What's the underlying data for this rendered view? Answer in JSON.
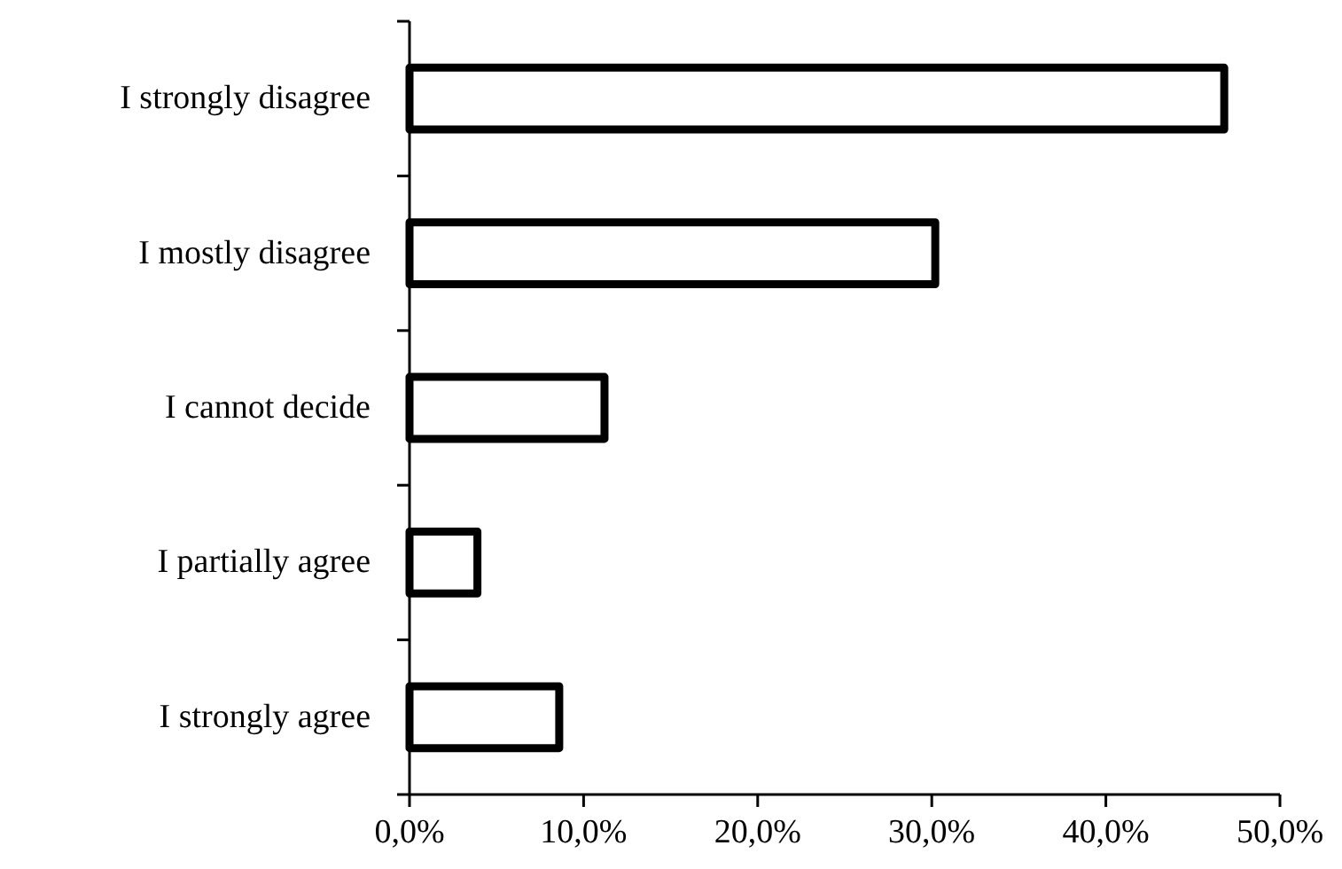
{
  "chart_data": {
    "type": "bar",
    "orientation": "horizontal",
    "categories": [
      "I strongly disagree",
      "I mostly disagree",
      "I cannot decide",
      "I partially agree",
      "I strongly agree"
    ],
    "values": [
      46.8,
      30.2,
      11.2,
      3.9,
      8.6
    ],
    "color": "#ffffff",
    "xlim": [
      0,
      50
    ],
    "xticks": [
      {
        "value": 0,
        "label": "0,0%"
      },
      {
        "value": 10,
        "label": "10,0%"
      },
      {
        "value": 20,
        "label": "20,0%"
      },
      {
        "value": 30,
        "label": "30,0%"
      },
      {
        "value": 40,
        "label": "40,0%"
      },
      {
        "value": 50,
        "label": "50,0%"
      }
    ],
    "grid": false
  }
}
